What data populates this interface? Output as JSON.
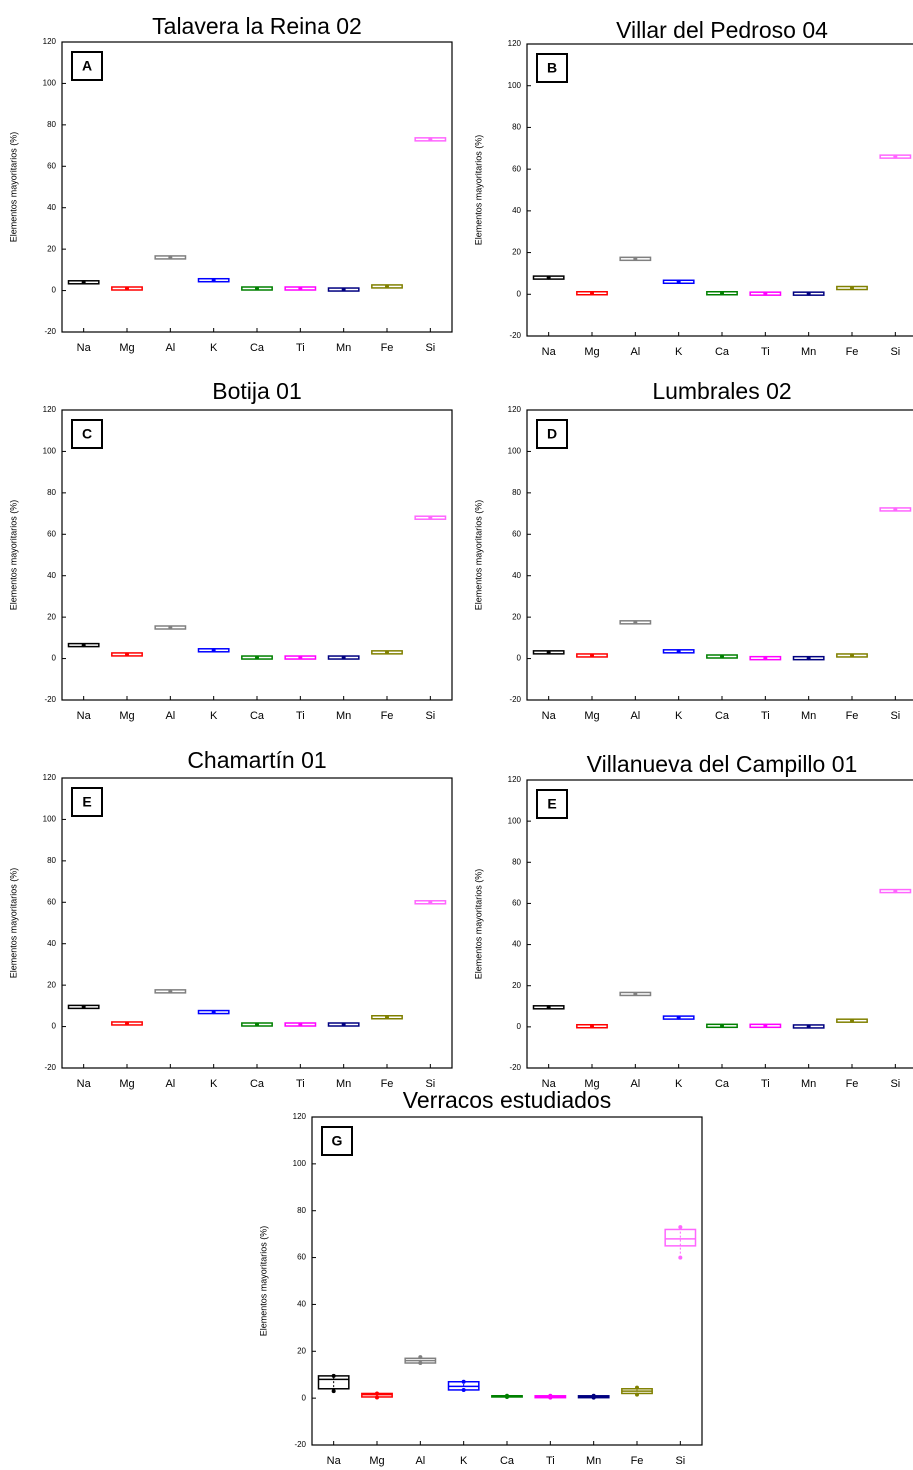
{
  "chart_data": [
    {
      "type": "box",
      "title": "Talavera la Reina 02",
      "label": "A",
      "y_label": "Elementos mayoritarios (%)",
      "categories": [
        "Na",
        "Mg",
        "Al",
        "K",
        "Ca",
        "Ti",
        "Mn",
        "Fe",
        "Si"
      ],
      "values": [
        4,
        1,
        16,
        5,
        1,
        1,
        0.5,
        2,
        73
      ],
      "colors": [
        "#000000",
        "#ff0000",
        "#808080",
        "#0000ff",
        "#008000",
        "#ff00ff",
        "#000080",
        "#808000",
        "#ff66ff"
      ],
      "ylim": [
        -20,
        120
      ],
      "yticks": [
        -20,
        0,
        20,
        40,
        60,
        80,
        100,
        120
      ]
    },
    {
      "type": "box",
      "title": "Villar del Pedroso 04",
      "label": "B",
      "y_label": "Elementos mayoritarios (%)",
      "categories": [
        "Na",
        "Mg",
        "Al",
        "K",
        "Ca",
        "Ti",
        "Mn",
        "Fe",
        "Si"
      ],
      "values": [
        8,
        0.5,
        17,
        6,
        0.5,
        0.3,
        0.3,
        3,
        66
      ],
      "colors": [
        "#000000",
        "#ff0000",
        "#808080",
        "#0000ff",
        "#008000",
        "#ff00ff",
        "#000080",
        "#808000",
        "#ff66ff"
      ],
      "ylim": [
        -20,
        120
      ],
      "yticks": [
        -20,
        0,
        20,
        40,
        60,
        80,
        100,
        120
      ]
    },
    {
      "type": "box",
      "title": "Botija 01",
      "label": "C",
      "y_label": "Elementos mayoritarios (%)",
      "categories": [
        "Na",
        "Mg",
        "Al",
        "K",
        "Ca",
        "Ti",
        "Mn",
        "Fe",
        "Si"
      ],
      "values": [
        6.5,
        2,
        15,
        4,
        0.5,
        0.5,
        0.5,
        3,
        68
      ],
      "colors": [
        "#000000",
        "#ff0000",
        "#808080",
        "#0000ff",
        "#008000",
        "#ff00ff",
        "#000080",
        "#808000",
        "#ff66ff"
      ],
      "ylim": [
        -20,
        120
      ],
      "yticks": [
        -20,
        0,
        20,
        40,
        60,
        80,
        100,
        120
      ]
    },
    {
      "type": "box",
      "title": "Lumbrales 02",
      "label": "D",
      "y_label": "Elementos mayoritarios (%)",
      "categories": [
        "Na",
        "Mg",
        "Al",
        "K",
        "Ca",
        "Ti",
        "Mn",
        "Fe",
        "Si"
      ],
      "values": [
        3,
        1.5,
        17.5,
        3.5,
        1,
        0.2,
        0.2,
        1.5,
        72
      ],
      "colors": [
        "#000000",
        "#ff0000",
        "#808080",
        "#0000ff",
        "#008000",
        "#ff00ff",
        "#000080",
        "#808000",
        "#ff66ff"
      ],
      "ylim": [
        -20,
        120
      ],
      "yticks": [
        -20,
        0,
        20,
        40,
        60,
        80,
        100,
        120
      ]
    },
    {
      "type": "box",
      "title": "Chamartín 01",
      "label": "E",
      "y_label": "Elementos mayoritarios (%)",
      "categories": [
        "Na",
        "Mg",
        "Al",
        "K",
        "Ca",
        "Ti",
        "Mn",
        "Fe",
        "Si"
      ],
      "values": [
        9.5,
        1.5,
        17,
        7,
        1,
        1,
        1,
        4.5,
        60
      ],
      "colors": [
        "#000000",
        "#ff0000",
        "#808080",
        "#0000ff",
        "#008000",
        "#ff00ff",
        "#000080",
        "#808000",
        "#ff66ff"
      ],
      "ylim": [
        -20,
        120
      ],
      "yticks": [
        -20,
        0,
        20,
        40,
        60,
        80,
        100,
        120
      ]
    },
    {
      "type": "box",
      "title": "Villanueva del Campillo 01",
      "label": "E",
      "y_label": "Elementos mayoritarios (%)",
      "categories": [
        "Na",
        "Mg",
        "Al",
        "K",
        "Ca",
        "Ti",
        "Mn",
        "Fe",
        "Si"
      ],
      "values": [
        9.5,
        0.3,
        16,
        4.5,
        0.5,
        0.5,
        0.2,
        3,
        66
      ],
      "colors": [
        "#000000",
        "#ff0000",
        "#808080",
        "#0000ff",
        "#008000",
        "#ff00ff",
        "#000080",
        "#808000",
        "#ff66ff"
      ],
      "ylim": [
        -20,
        120
      ],
      "yticks": [
        -20,
        0,
        20,
        40,
        60,
        80,
        100,
        120
      ]
    },
    {
      "type": "boxplot",
      "title": "Verracos estudiados",
      "label": "G",
      "y_label": "Elementos mayoritarios (%)",
      "categories": [
        "Na",
        "Mg",
        "Al",
        "K",
        "Ca",
        "Ti",
        "Mn",
        "Fe",
        "Si"
      ],
      "median": [
        8,
        1.5,
        16,
        5,
        1,
        0.5,
        0.5,
        3,
        68
      ],
      "q1": [
        4,
        0.5,
        15,
        3.5,
        0.5,
        0.2,
        0.2,
        2,
        65
      ],
      "q3": [
        9.5,
        2,
        17,
        7,
        1,
        1,
        1,
        4,
        72
      ],
      "min": [
        3,
        0.3,
        15,
        3.5,
        0.5,
        0.2,
        0.2,
        1.5,
        60
      ],
      "max": [
        9.5,
        2,
        17.5,
        7,
        1,
        1,
        1,
        4.5,
        73
      ],
      "colors": [
        "#000000",
        "#ff0000",
        "#808080",
        "#0000ff",
        "#008000",
        "#ff00ff",
        "#000080",
        "#808000",
        "#ff66ff"
      ],
      "ylim": [
        -20,
        120
      ],
      "yticks": [
        -20,
        0,
        20,
        40,
        60,
        80,
        100,
        120
      ]
    }
  ]
}
